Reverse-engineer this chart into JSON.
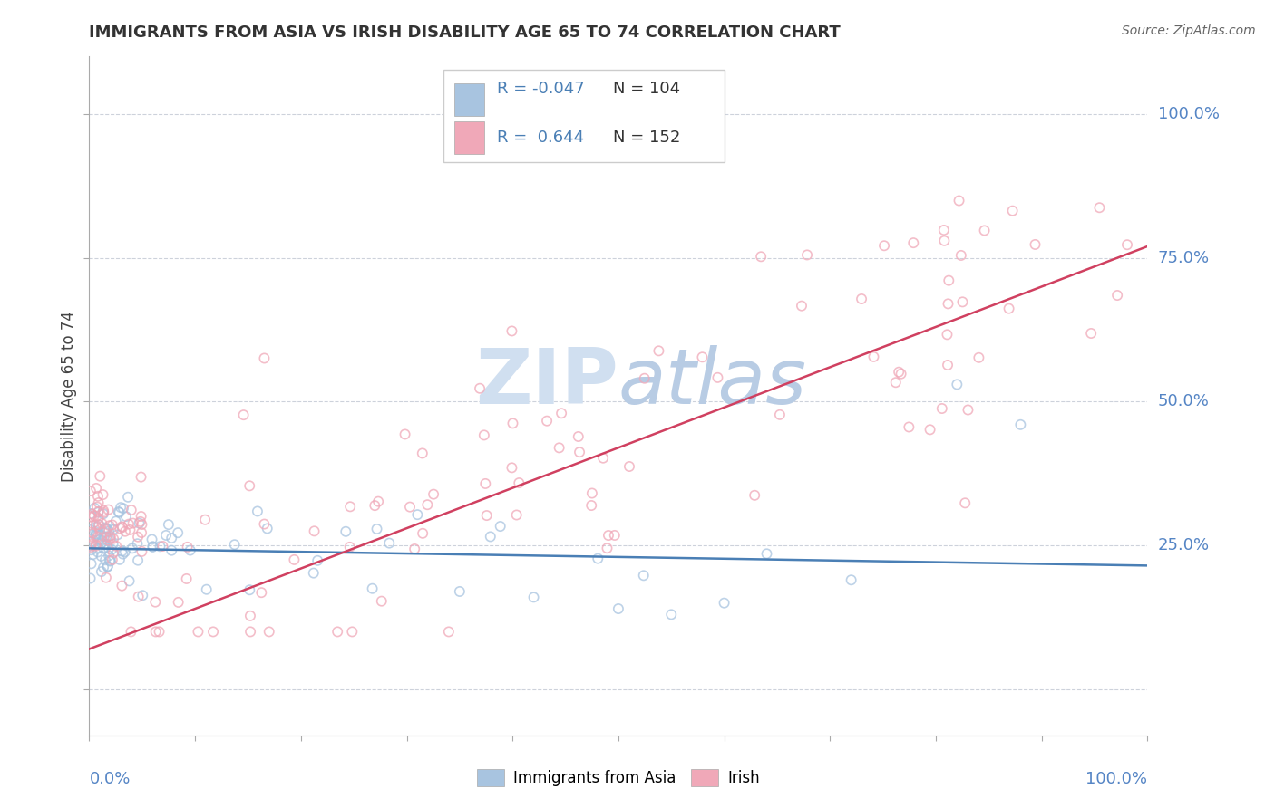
{
  "title": "IMMIGRANTS FROM ASIA VS IRISH DISABILITY AGE 65 TO 74 CORRELATION CHART",
  "source": "Source: ZipAtlas.com",
  "ylabel": "Disability Age 65 to 74",
  "legend_label1": "Immigrants from Asia",
  "legend_label2": "Irish",
  "r1": -0.047,
  "n1": 104,
  "r2": 0.644,
  "n2": 152,
  "color_asia": "#a8c4e0",
  "color_irish": "#f0a8b8",
  "line_color_asia": "#4a7fb5",
  "line_color_irish": "#d04060",
  "text_color_r": "#4a7fb5",
  "label_color": "#5585c5",
  "watermark_color": "#d0dff0",
  "background_color": "#ffffff",
  "grid_color": "#c8cdd8",
  "title_color": "#333333",
  "xlim": [
    0,
    1.0
  ],
  "ylim": [
    -0.08,
    1.1
  ],
  "yticks": [
    0.0,
    0.25,
    0.5,
    0.75,
    1.0
  ],
  "xticks": [
    0.0,
    0.1,
    0.2,
    0.3,
    0.4,
    0.5,
    0.6,
    0.7,
    0.8,
    0.9,
    1.0
  ],
  "asia_line_y": [
    0.245,
    0.215
  ],
  "irish_line_y": [
    0.07,
    0.77
  ],
  "dot_size": 55,
  "dot_alpha": 0.75,
  "dot_linewidth": 1.2
}
